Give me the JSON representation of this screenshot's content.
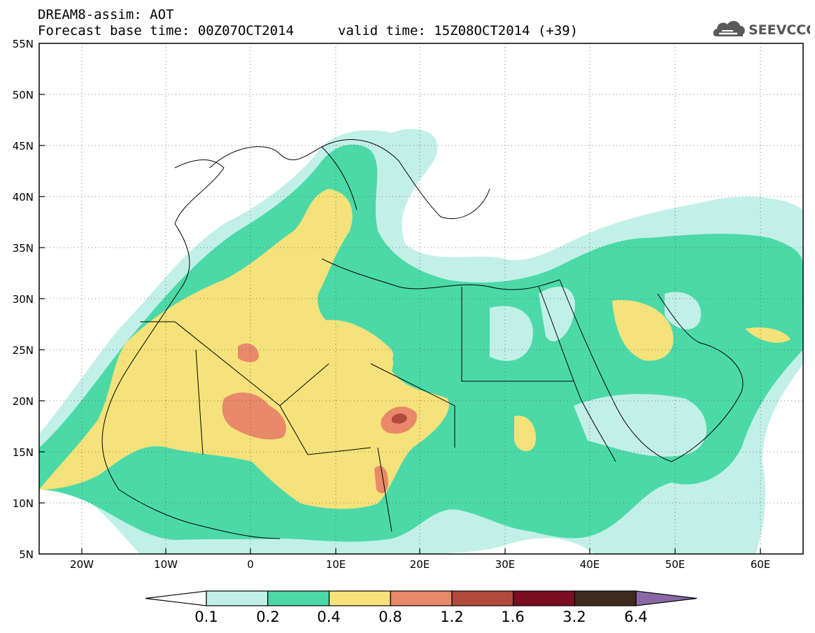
{
  "header": {
    "line1": "DREAM8-assim: AOT",
    "line2": "Forecast base time: 00Z07OCT2014",
    "valid": "valid time: 15Z08OCT2014 (+39)",
    "logo_text": "SEEVCCC",
    "logo_icon": "cloud-icon"
  },
  "map": {
    "lat_labels": [
      "55N",
      "50N",
      "45N",
      "40N",
      "35N",
      "30N",
      "25N",
      "20N",
      "15N",
      "10N",
      "5N"
    ],
    "lon_labels": [
      "20W",
      "10W",
      "0",
      "10E",
      "20E",
      "30E",
      "40E",
      "50E",
      "60E"
    ],
    "extent": {
      "lon_min": -25,
      "lon_max": 65,
      "lat_min": 5,
      "lat_max": 55
    },
    "grid": "dotted"
  },
  "colorbar": {
    "labels": [
      "0.1",
      "0.2",
      "0.4",
      "0.8",
      "1.2",
      "1.6",
      "3.2",
      "6.4"
    ],
    "colors": [
      "#ffffff",
      "#c2f0e8",
      "#4cd9a8",
      "#f5e27a",
      "#e8896a",
      "#b04a3c",
      "#7a0f24",
      "#3e2a1c",
      "#8a68a8"
    ]
  }
}
